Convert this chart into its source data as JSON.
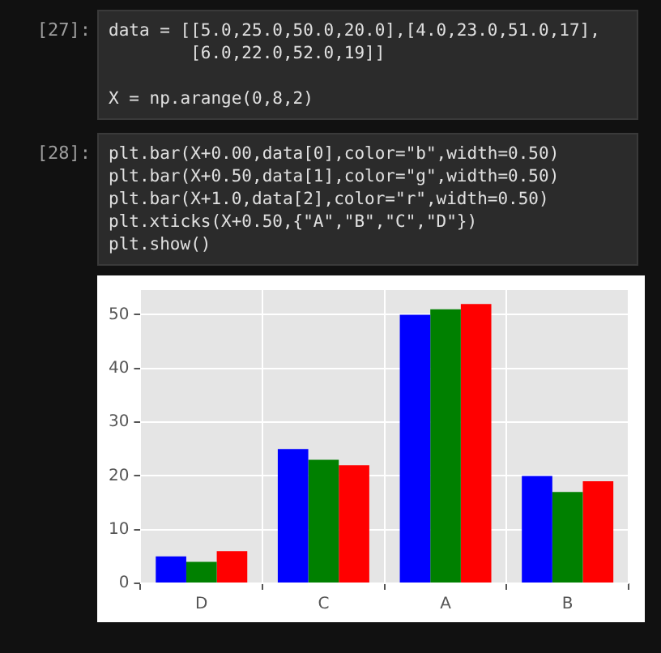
{
  "chart_data": {
    "type": "bar",
    "categories": [
      "D",
      "C",
      "A",
      "B"
    ],
    "series": [
      {
        "color": "#0000ff",
        "values": [
          5,
          25,
          50,
          20
        ]
      },
      {
        "color": "#008000",
        "values": [
          4,
          23,
          51,
          17
        ]
      },
      {
        "color": "#ff0000",
        "values": [
          6,
          22,
          52,
          19
        ]
      }
    ],
    "ylim": [
      0,
      54.6
    ],
    "yticks": [
      0,
      10,
      20,
      30,
      40,
      50
    ],
    "grid": true,
    "legend": false,
    "annotations": [
      "[27]:",
      "data = [[5.0,25.0,50.0,20.0],[4.0,23.0,51.0,17],\n        [6.0,22.0,52.0,19]]\n\nX = np.arange(0,8,2)",
      "[28]:",
      "plt.bar(X+0.00,data[0],color=\"b\",width=0.50)\nplt.bar(X+0.50,data[1],color=\"g\",width=0.50)\nplt.bar(X+1.0,data[2],color=\"r\",width=0.50)\nplt.xticks(X+0.50,{\"A\",\"B\",\"C\",\"D\"})\nplt.show()"
    ]
  }
}
